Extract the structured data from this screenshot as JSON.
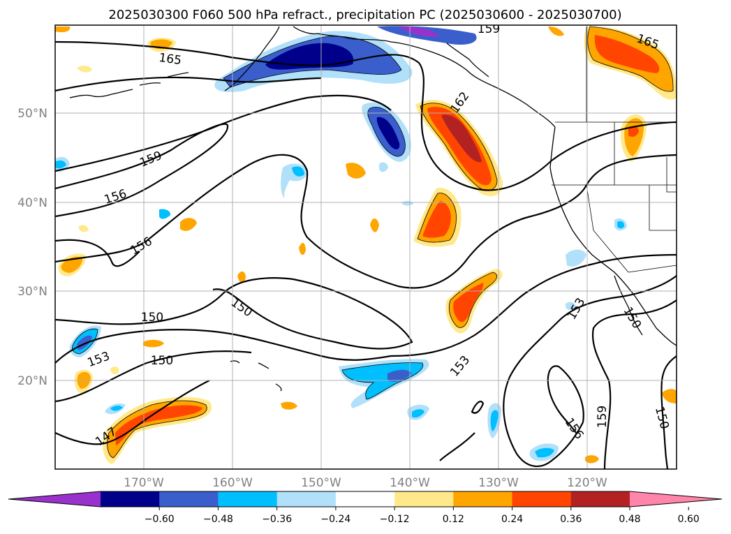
{
  "title": "2025030300 F060 500 hPa refract., precipitation PC (2025030600 - 2025030700)",
  "map": {
    "lon_range": [
      -180,
      -110
    ],
    "lat_range": [
      10,
      60
    ],
    "lat_labels": [
      "50°N",
      "40°N",
      "30°N",
      "20°N"
    ],
    "lon_labels": [
      "170°W",
      "160°W",
      "150°W",
      "140°W",
      "130°W",
      "120°W"
    ],
    "contour_labels": [
      "165",
      "165",
      "159",
      "162",
      "159",
      "156",
      "156",
      "150",
      "150",
      "153",
      "150",
      "153",
      "153",
      "150",
      "147",
      "156",
      "159",
      "150"
    ]
  },
  "colorbar": {
    "ticks": [
      "−0.60",
      "−0.48",
      "−0.36",
      "−0.24",
      "−0.12",
      "0.12",
      "0.24",
      "0.36",
      "0.48",
      "0.60"
    ],
    "colors": [
      "#9932cc",
      "#00008b",
      "#3a5fcd",
      "#00bfff",
      "#b0e0fa",
      "#ffffff",
      "#ffe98a",
      "#ffa500",
      "#ff4500",
      "#b22222",
      "#ff85aa"
    ]
  }
}
